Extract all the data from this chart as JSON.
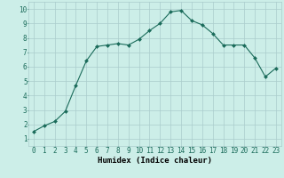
{
  "x": [
    0,
    1,
    2,
    3,
    4,
    5,
    6,
    7,
    8,
    9,
    10,
    11,
    12,
    13,
    14,
    15,
    16,
    17,
    18,
    19,
    20,
    21,
    22,
    23
  ],
  "y": [
    1.5,
    1.9,
    2.2,
    2.9,
    4.7,
    6.4,
    7.4,
    7.5,
    7.6,
    7.5,
    7.9,
    8.5,
    9.0,
    9.8,
    9.9,
    9.2,
    8.9,
    8.3,
    7.5,
    7.5,
    7.5,
    6.6,
    5.3,
    5.9
  ],
  "line_color": "#1a6b5a",
  "marker": "D",
  "marker_size": 2.0,
  "bg_color": "#cceee8",
  "grid_color": "#aacccc",
  "xlabel": "Humidex (Indice chaleur)",
  "xlim": [
    -0.5,
    23.5
  ],
  "ylim": [
    0.5,
    10.5
  ],
  "xticks": [
    0,
    1,
    2,
    3,
    4,
    5,
    6,
    7,
    8,
    9,
    10,
    11,
    12,
    13,
    14,
    15,
    16,
    17,
    18,
    19,
    20,
    21,
    22,
    23
  ],
  "yticks": [
    1,
    2,
    3,
    4,
    5,
    6,
    7,
    8,
    9,
    10
  ],
  "font_size_axis": 6.5,
  "font_size_tick": 5.5
}
